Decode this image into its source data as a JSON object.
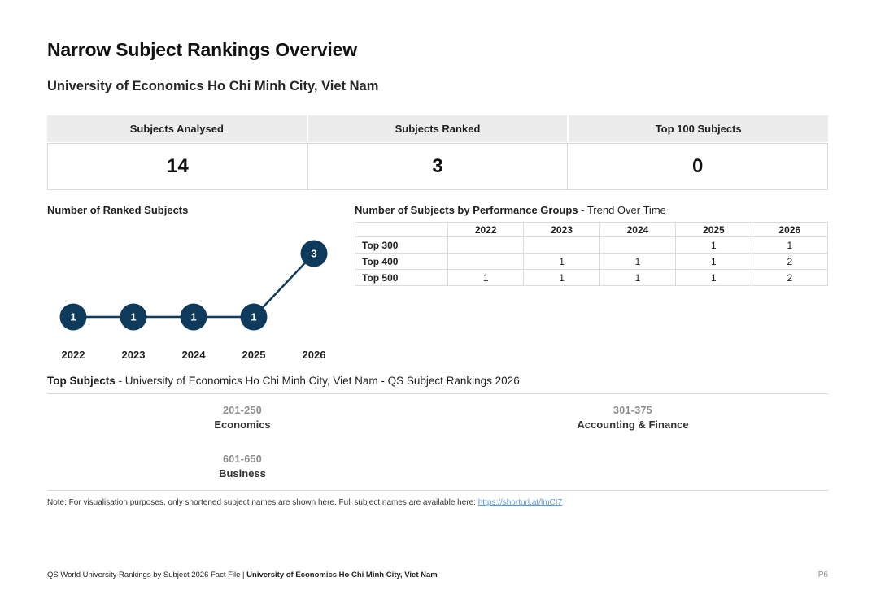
{
  "page": {
    "title": "Narrow Subject Rankings Overview",
    "subtitle": "University of Economics Ho Chi Minh City, Viet Nam"
  },
  "stats": {
    "cards": [
      {
        "label": "Subjects Analysed",
        "value": "14"
      },
      {
        "label": "Subjects Ranked",
        "value": "3"
      },
      {
        "label": "Top 100 Subjects",
        "value": "0"
      }
    ]
  },
  "ranked_chart": {
    "title": "Number of Ranked Subjects",
    "years": [
      "2022",
      "2023",
      "2024",
      "2025",
      "2026"
    ],
    "values": [
      1,
      1,
      1,
      1,
      3
    ]
  },
  "performance": {
    "title_bold": "Number of Subjects by Performance Groups",
    "title_rest": " - Trend Over Time",
    "year_headers": [
      "2022",
      "2023",
      "2024",
      "2025",
      "2026"
    ],
    "rows": [
      {
        "label": "Top 300",
        "values": [
          "",
          "",
          "",
          "1",
          "1"
        ]
      },
      {
        "label": "Top 400",
        "values": [
          "",
          "1",
          "1",
          "1",
          "2"
        ]
      },
      {
        "label": "Top 500",
        "values": [
          "1",
          "1",
          "1",
          "1",
          "2"
        ]
      }
    ]
  },
  "top_subjects": {
    "title_bold": "Top Subjects",
    "title_rest": " - University of Economics Ho Chi Minh City, Viet Nam - QS Subject Rankings 2026",
    "items": [
      {
        "rank": "201-250",
        "name": "Economics"
      },
      {
        "rank": "301-375",
        "name": "Accounting & Finance"
      },
      {
        "rank": "601-650",
        "name": "Business"
      }
    ]
  },
  "note": {
    "prefix": "Note: For visualisation purposes, only shortened subject names are shown here. Full subject names are available here: ",
    "link_text": "https://shorturl.at/lmCI7"
  },
  "footer": {
    "left_text": "QS World University Rankings by Subject 2026 Fact File | ",
    "left_bold": "University of Economics Ho Chi Minh City, Viet Nam",
    "page_number": "P6"
  },
  "colors": {
    "navy": "#0e3a5c",
    "header_bg": "#ececec",
    "grid_border": "#dcdcdc",
    "muted_text": "#8c8c8c",
    "link_blue": "#5b9bd5"
  },
  "chart_data": [
    {
      "type": "line",
      "title": "Number of Ranked Subjects",
      "x": [
        "2022",
        "2023",
        "2024",
        "2025",
        "2026"
      ],
      "values": [
        1,
        1,
        1,
        1,
        3
      ],
      "marker": "filled-circle-with-value-label",
      "marker_color": "#0e3a5c",
      "ylim": [
        0,
        3
      ],
      "grid": false,
      "legend": "none"
    },
    {
      "type": "table",
      "title": "Number of Subjects by Performance Groups - Trend Over Time",
      "columns": [
        "",
        "2022",
        "2023",
        "2024",
        "2025",
        "2026"
      ],
      "rows": [
        [
          "Top 300",
          "",
          "",
          "",
          "1",
          "1"
        ],
        [
          "Top 400",
          "",
          "1",
          "1",
          "1",
          "2"
        ],
        [
          "Top 500",
          "1",
          "1",
          "1",
          "1",
          "2"
        ]
      ]
    }
  ]
}
